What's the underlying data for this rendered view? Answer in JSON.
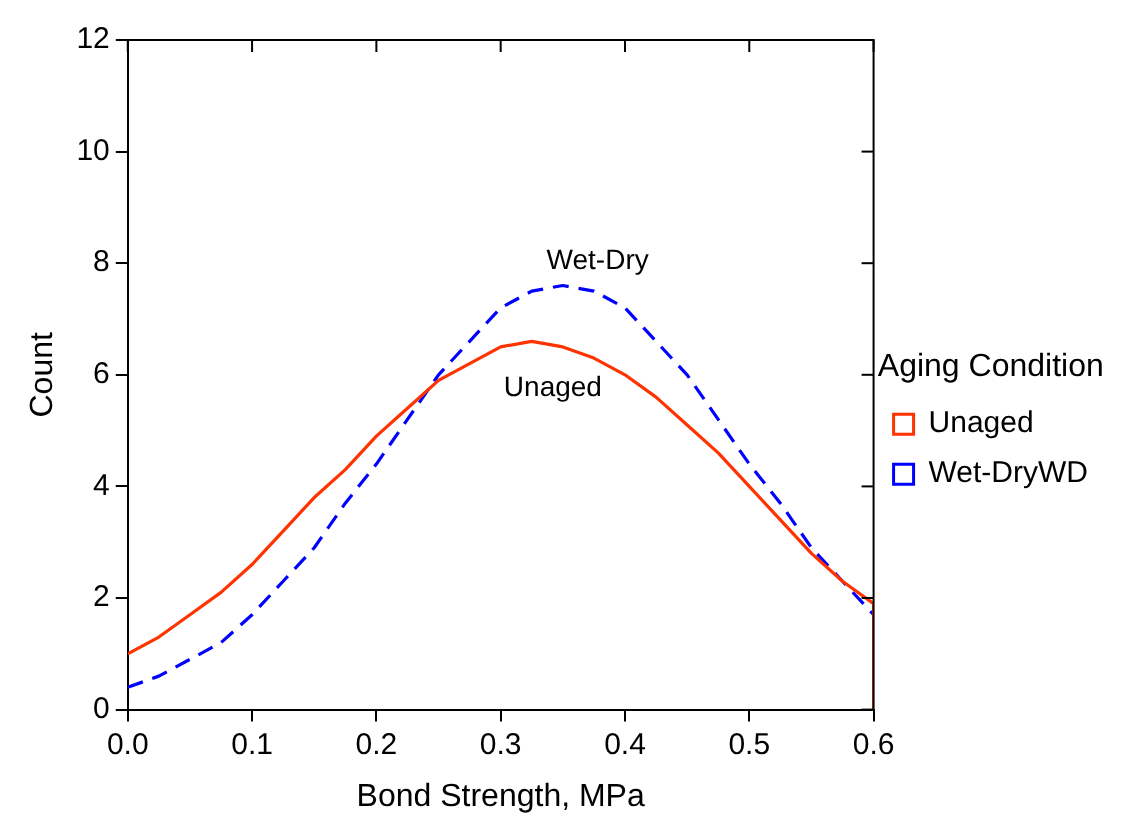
{
  "chart_data": {
    "type": "line",
    "xlabel": "Bond Strength, MPa",
    "ylabel": "Count",
    "legend_title": "Aging Condition",
    "legend": "right",
    "grid": false,
    "marker": "none",
    "x": [
      0,
      0.025,
      0.05,
      0.075,
      0.1,
      0.125,
      0.15,
      0.175,
      0.2,
      0.225,
      0.25,
      0.275,
      0.3,
      0.325,
      0.35,
      0.375,
      0.4,
      0.425,
      0.45,
      0.475,
      0.5,
      0.525,
      0.55,
      0.575,
      0.6,
      0.6
    ],
    "series": [
      {
        "name": "Unaged",
        "color": "#ff3300",
        "line_style": "solid",
        "values": [
          1.0,
          1.3,
          1.7,
          2.1,
          2.6,
          3.2,
          3.8,
          4.3,
          4.9,
          5.4,
          5.9,
          6.2,
          6.5,
          6.6,
          6.5,
          6.3,
          6.0,
          5.6,
          5.1,
          4.6,
          4.0,
          3.4,
          2.8,
          2.3,
          1.9,
          0
        ]
      },
      {
        "name": "Wet-DryWD",
        "color": "#0000ff",
        "line_style": "dashed",
        "values": [
          0.4,
          0.6,
          0.9,
          1.2,
          1.7,
          2.3,
          2.9,
          3.7,
          4.4,
          5.2,
          6.0,
          6.6,
          7.2,
          7.5,
          7.6,
          7.5,
          7.2,
          6.6,
          6.0,
          5.2,
          4.4,
          3.7,
          2.9,
          2.3,
          1.7,
          0
        ]
      }
    ],
    "xlim": [
      0,
      0.6
    ],
    "xticks": [
      {
        "value": 0,
        "label": "0.0"
      },
      0.1,
      0.2,
      0.3,
      0.4,
      0.5,
      0.6
    ],
    "ylim": [
      0,
      12
    ],
    "yticks": [
      0,
      2,
      4,
      6,
      8,
      10,
      12
    ],
    "annotations": [
      "Wet-Dry",
      "Unaged"
    ]
  }
}
